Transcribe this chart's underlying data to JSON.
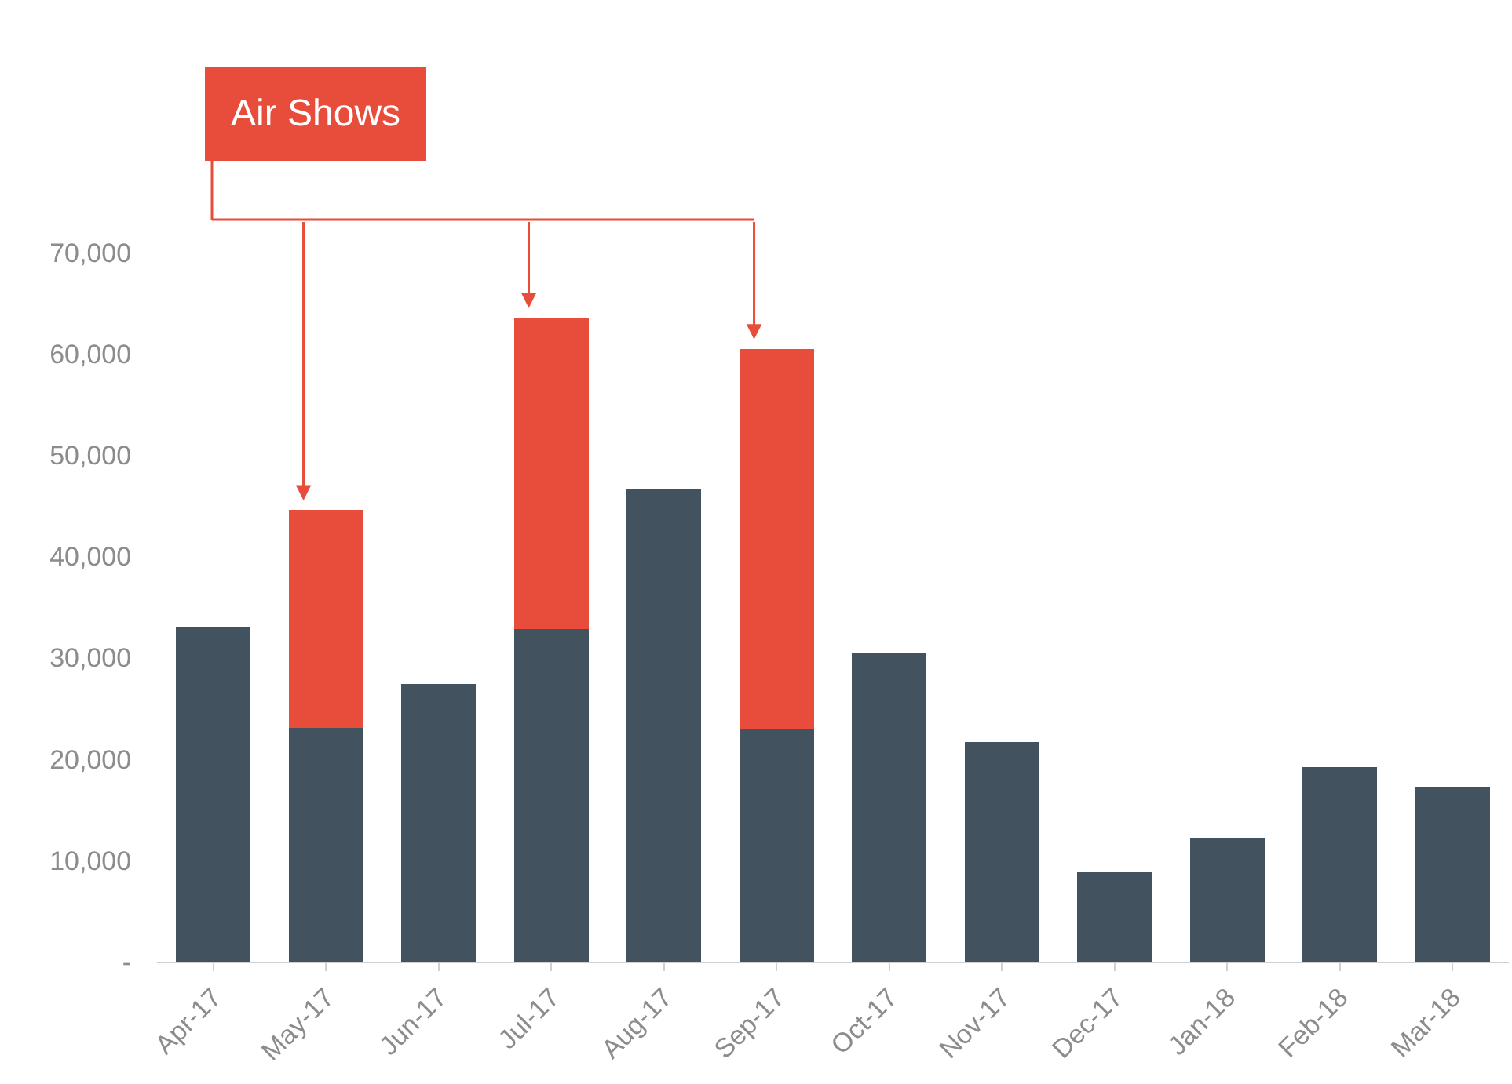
{
  "chart_data": {
    "type": "bar",
    "stacked": true,
    "categories": [
      "Apr-17",
      "May-17",
      "Jun-17",
      "Jul-17",
      "Aug-17",
      "Sep-17",
      "Oct-17",
      "Nov-17",
      "Dec-17",
      "Jan-18",
      "Feb-18",
      "Mar-18"
    ],
    "series": [
      {
        "color": "#42535f",
        "values": [
          33000,
          23100,
          27400,
          32800,
          46600,
          22900,
          30500,
          21700,
          8800,
          12200,
          19200,
          17300
        ]
      },
      {
        "name": "Air Shows",
        "color": "#e84c3a",
        "values": [
          null,
          21500,
          null,
          30800,
          null,
          37600,
          null,
          null,
          null,
          null,
          null,
          null
        ]
      }
    ],
    "ylim": [
      0,
      70000
    ],
    "yticks": [
      {
        "value": 0,
        "label": "-"
      },
      {
        "value": 10000,
        "label": "10,000"
      },
      {
        "value": 20000,
        "label": "20,000"
      },
      {
        "value": 30000,
        "label": "30,000"
      },
      {
        "value": 40000,
        "label": "40,000"
      },
      {
        "value": 50000,
        "label": "50,000"
      },
      {
        "value": 60000,
        "label": "60,000"
      },
      {
        "value": 70000,
        "label": "70,000"
      }
    ],
    "legend": false
  }
}
